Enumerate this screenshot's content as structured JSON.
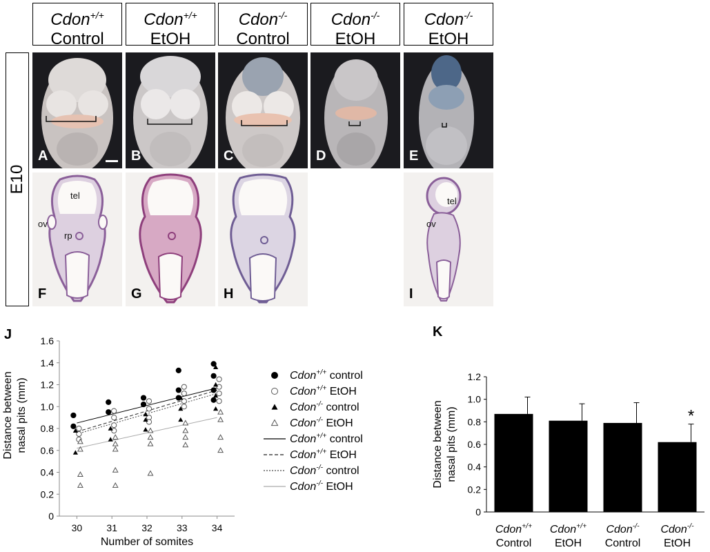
{
  "headers": [
    {
      "gene": "Cdon",
      "sup": "+/+",
      "treatment": "Control"
    },
    {
      "gene": "Cdon",
      "sup": "+/+",
      "treatment": "EtOH"
    },
    {
      "gene": "Cdon",
      "sup": "-/-",
      "treatment": "Control"
    },
    {
      "gene": "Cdon",
      "sup": "-/-",
      "treatment": "EtOH"
    },
    {
      "gene": "Cdon",
      "sup": "-/-",
      "treatment": "EtOH"
    }
  ],
  "stage_label": "E10",
  "photo_letters": [
    "A",
    "B",
    "C",
    "D",
    "E"
  ],
  "section_letters": [
    "F",
    "G",
    "H",
    "I"
  ],
  "annotations": {
    "tel": "tel",
    "ov": "ov",
    "rp": "rp"
  },
  "panel_j_letter": "J",
  "panel_k_letter": "K",
  "chart_data": [
    {
      "type": "scatter",
      "panel": "J",
      "xlabel": "Number of somites",
      "ylabel_line1": "Distance between",
      "ylabel_line2": "nasal pits (mm)",
      "x_ticks": [
        30,
        31,
        32,
        33,
        34
      ],
      "y_ticks": [
        "0",
        "0.2",
        "0.4",
        "0.6",
        "0.8",
        "1.0",
        "1.2",
        "1.4",
        "1.6"
      ],
      "xlim": [
        29.5,
        34.5
      ],
      "ylim": [
        0,
        1.6
      ],
      "series": [
        {
          "gene": "Cdon",
          "sup": "+/+",
          "name": "control",
          "marker": "filled-circle",
          "points": [
            [
              30,
              0.92
            ],
            [
              30,
              0.82
            ],
            [
              31,
              1.04
            ],
            [
              31,
              0.95
            ],
            [
              32,
              1.08
            ],
            [
              32,
              1.02
            ],
            [
              33,
              1.33
            ],
            [
              33,
              1.15
            ],
            [
              33,
              1.08
            ],
            [
              34,
              1.39
            ],
            [
              34,
              1.28
            ],
            [
              34,
              1.15
            ],
            [
              34,
              1.06
            ]
          ]
        },
        {
          "gene": "Cdon",
          "sup": "+/+",
          "name": "EtOH",
          "marker": "open-circle",
          "points": [
            [
              30,
              0.8
            ],
            [
              30,
              0.75
            ],
            [
              30,
              0.7
            ],
            [
              31,
              0.96
            ],
            [
              31,
              0.9
            ],
            [
              31,
              0.83
            ],
            [
              31,
              0.78
            ],
            [
              32,
              1.05
            ],
            [
              32,
              0.98
            ],
            [
              32,
              0.9
            ],
            [
              32,
              0.86
            ],
            [
              33,
              1.18
            ],
            [
              33,
              1.12
            ],
            [
              33,
              1.05
            ],
            [
              33,
              1.0
            ],
            [
              34,
              1.25
            ],
            [
              34,
              1.18
            ],
            [
              34,
              1.12
            ],
            [
              34,
              1.05
            ]
          ]
        },
        {
          "gene": "Cdon",
          "sup": "-/-",
          "name": "control",
          "marker": "filled-triangle",
          "points": [
            [
              30,
              0.78
            ],
            [
              30,
              0.58
            ],
            [
              31,
              0.8
            ],
            [
              31,
              0.7
            ],
            [
              32,
              0.93
            ],
            [
              32,
              0.88
            ],
            [
              32,
              0.79
            ],
            [
              33,
              1.08
            ],
            [
              33,
              0.98
            ],
            [
              33,
              0.88
            ],
            [
              34,
              1.36
            ],
            [
              34,
              1.2
            ],
            [
              34,
              1.1
            ],
            [
              34,
              0.98
            ]
          ]
        },
        {
          "gene": "Cdon",
          "sup": "-/-",
          "name": "EtOH",
          "marker": "open-triangle",
          "points": [
            [
              30,
              0.68
            ],
            [
              30,
              0.61
            ],
            [
              30,
              0.38
            ],
            [
              30,
              0.28
            ],
            [
              31,
              0.72
            ],
            [
              31,
              0.66
            ],
            [
              31,
              0.61
            ],
            [
              31,
              0.42
            ],
            [
              31,
              0.28
            ],
            [
              32,
              0.78
            ],
            [
              32,
              0.72
            ],
            [
              32,
              0.66
            ],
            [
              32,
              0.39
            ],
            [
              33,
              0.85
            ],
            [
              33,
              0.78
            ],
            [
              33,
              0.72
            ],
            [
              33,
              0.65
            ],
            [
              34,
              0.95
            ],
            [
              34,
              0.88
            ],
            [
              34,
              0.72
            ],
            [
              34,
              0.6
            ]
          ]
        }
      ],
      "fits": [
        {
          "gene": "Cdon",
          "sup": "+/+",
          "name": "control",
          "style": "solid",
          "y30": 0.85,
          "y34": 1.17
        },
        {
          "gene": "Cdon",
          "sup": "+/+",
          "name": "EtOH",
          "style": "dashed",
          "y30": 0.77,
          "y34": 1.15
        },
        {
          "gene": "Cdon",
          "sup": "-/-",
          "name": "control",
          "style": "dotted",
          "y30": 0.75,
          "y34": 1.12
        },
        {
          "gene": "Cdon",
          "sup": "-/-",
          "name": "EtOH",
          "style": "light",
          "y30": 0.62,
          "y34": 0.9
        }
      ]
    },
    {
      "type": "bar",
      "panel": "K",
      "ylabel_line1": "Distance between",
      "ylabel_line2": "nasal pits (mm)",
      "y_ticks": [
        "0",
        "0.2",
        "0.4",
        "0.6",
        "0.8",
        "1.0",
        "1.2"
      ],
      "ylim": [
        0,
        1.2
      ],
      "categories": [
        {
          "gene": "Cdon",
          "sup": "+/+",
          "treatment": "Control"
        },
        {
          "gene": "Cdon",
          "sup": "+/+",
          "treatment": "EtOH"
        },
        {
          "gene": "Cdon",
          "sup": "-/-",
          "treatment": "Control"
        },
        {
          "gene": "Cdon",
          "sup": "-/-",
          "treatment": "EtOH"
        }
      ],
      "values": [
        0.87,
        0.81,
        0.79,
        0.62
      ],
      "errors": [
        0.15,
        0.15,
        0.18,
        0.16
      ],
      "significance": [
        "",
        "",
        "",
        "*"
      ]
    }
  ]
}
